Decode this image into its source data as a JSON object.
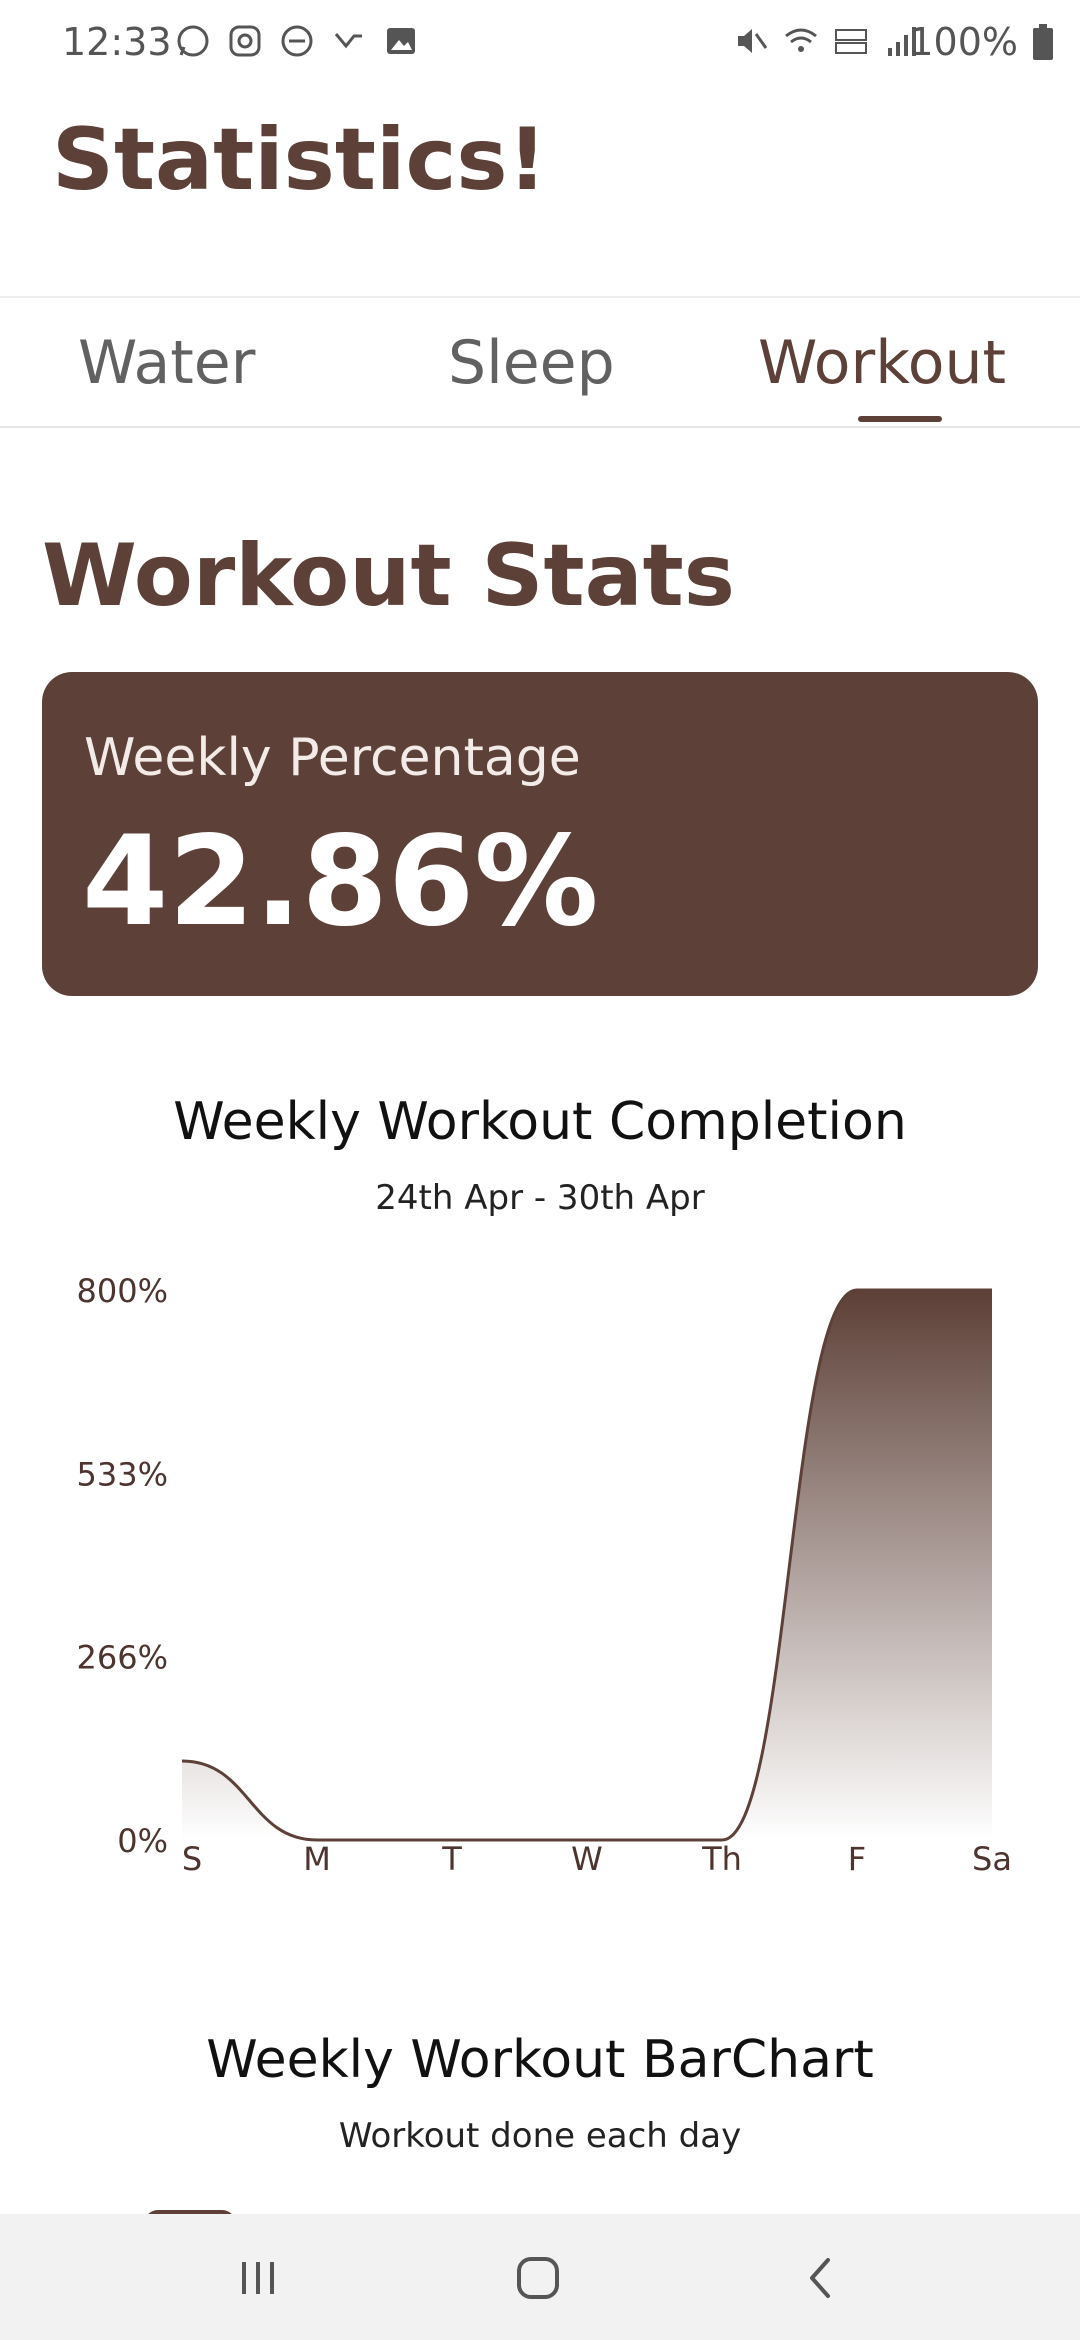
{
  "status_bar": {
    "time": "12:33",
    "battery": "100%",
    "left_icons": [
      "whatsapp-icon",
      "instagram-icon",
      "do-not-disturb-icon",
      "missed-call-icon",
      "gallery-icon"
    ],
    "right_icons": [
      "mute-icon",
      "wifi-icon",
      "volte-icon",
      "signal-icon"
    ]
  },
  "app": {
    "title": "Statistics!"
  },
  "tabs": [
    {
      "label": "Water",
      "active": false
    },
    {
      "label": "Sleep",
      "active": false
    },
    {
      "label": "Workout",
      "active": true
    }
  ],
  "section": {
    "title": "Workout Stats"
  },
  "weekly_card": {
    "label": "Weekly Percentage",
    "value": "42.86%"
  },
  "chart1": {
    "title": "Weekly Workout Completion",
    "subtitle": "24th Apr - 30th Apr"
  },
  "chart2": {
    "title": "Weekly Workout BarChart",
    "subtitle": "Workout done each day"
  },
  "colors": {
    "accent": "#5d4037",
    "card_bg": "#5d4037",
    "nav_bg": "#f2f2f2"
  },
  "chart_data": {
    "type": "area",
    "title": "Weekly Workout Completion",
    "subtitle": "24th Apr - 30th Apr",
    "categories": [
      "S",
      "M",
      "T",
      "W",
      "Th",
      "F",
      "Sa"
    ],
    "values": [
      115,
      0,
      0,
      0,
      0,
      800,
      800
    ],
    "y_ticks": [
      "0%",
      "266%",
      "533%",
      "800%"
    ],
    "ylim": [
      0,
      800
    ],
    "grid": false,
    "fill": "gradient",
    "xlabel": "",
    "ylabel": ""
  }
}
